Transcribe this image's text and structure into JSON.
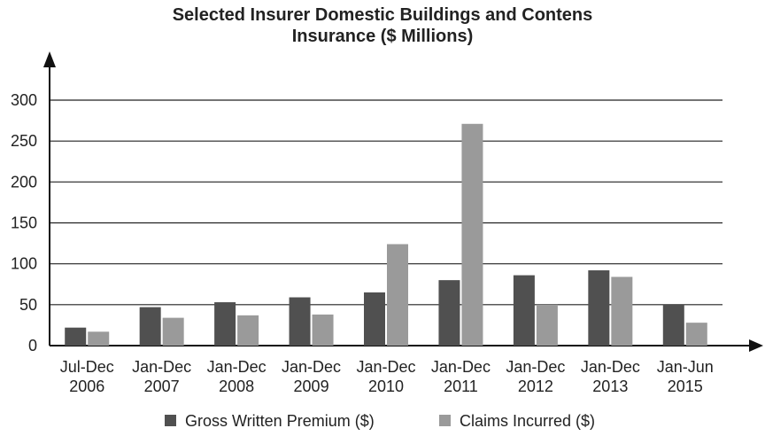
{
  "chart_data": {
    "type": "bar",
    "title": [
      "Selected Insurer Domestic Buildings and Contens",
      "Insurance ($ Millions)"
    ],
    "xlabel": "",
    "ylabel": "",
    "ylim": [
      0,
      300
    ],
    "yticks": [
      0,
      50,
      100,
      150,
      200,
      250,
      300
    ],
    "grid": true,
    "legend_position": "bottom",
    "categories": [
      [
        "Jul-Dec",
        "2006"
      ],
      [
        "Jan-Dec",
        "2007"
      ],
      [
        "Jan-Dec",
        "2008"
      ],
      [
        "Jan-Dec",
        "2009"
      ],
      [
        "Jan-Dec",
        "2010"
      ],
      [
        "Jan-Dec",
        "2011"
      ],
      [
        "Jan-Dec",
        "2012"
      ],
      [
        "Jan-Dec",
        "2013"
      ],
      [
        "Jan-Jun",
        "2015"
      ]
    ],
    "series": [
      {
        "name": "Gross Written Premium ($)",
        "color": "#505050",
        "values": [
          22,
          47,
          53,
          59,
          65,
          80,
          86,
          92,
          50
        ]
      },
      {
        "name": "Claims Incurred ($)",
        "color": "#9a9a9a",
        "values": [
          17,
          34,
          37,
          38,
          124,
          271,
          50,
          84,
          28
        ]
      }
    ]
  }
}
